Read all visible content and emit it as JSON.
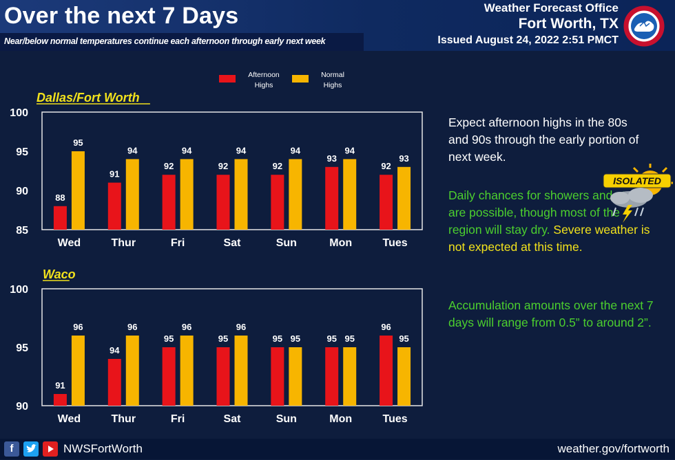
{
  "header": {
    "title": "Over the next 7 Days",
    "subtitle": "Near/below normal temperatures continue each afternoon through early next week",
    "office": "Weather Forecast Office",
    "city": "Fort Worth, TX",
    "issued": "Issued August 24, 2022 2:51 PMCT"
  },
  "legend": {
    "afternoon": "Afternoon Highs",
    "normal": "Normal Highs"
  },
  "colors": {
    "afternoon": "#e8141a",
    "normal": "#f7b500",
    "plot_border": "#e6e6e6",
    "location_label": "#f2e21c"
  },
  "chart_data": [
    {
      "type": "bar",
      "title": "Dallas/Fort Worth",
      "categories": [
        "Wed",
        "Thur",
        "Fri",
        "Sat",
        "Sun",
        "Mon",
        "Tues"
      ],
      "series": [
        {
          "name": "Afternoon Highs",
          "values": [
            88,
            91,
            92,
            92,
            92,
            93,
            92
          ]
        },
        {
          "name": "Normal Highs",
          "values": [
            95,
            94,
            94,
            94,
            94,
            94,
            93
          ]
        }
      ],
      "ylim": [
        85,
        100
      ],
      "yticks": [
        85,
        90,
        95,
        100
      ],
      "legend": "top-center",
      "grid": false
    },
    {
      "type": "bar",
      "title": "Waco",
      "categories": [
        "Wed",
        "Thur",
        "Fri",
        "Sat",
        "Sun",
        "Mon",
        "Tues"
      ],
      "series": [
        {
          "name": "Afternoon Highs",
          "values": [
            91,
            94,
            95,
            95,
            95,
            95,
            96
          ]
        },
        {
          "name": "Normal Highs",
          "values": [
            96,
            96,
            96,
            96,
            95,
            95,
            95
          ]
        }
      ],
      "ylim": [
        90,
        100
      ],
      "yticks": [
        90,
        95,
        100
      ],
      "grid": false
    }
  ],
  "text_panel": {
    "outlook": "Expect afternoon highs in the 80s and 90s through the early portion of next week.",
    "showers_green": "Daily chances for showers and storms are possible, though most of the region will stay dry.",
    "showers_yellow": "Severe weather is not expected at this time.",
    "accumulation": "Accumulation amounts over the next 7 days will range from 0.5” to around 2”.",
    "isolated_label": "ISOLATED",
    "isolated_icon": "thunderstorm-cloud-icon"
  },
  "footer": {
    "icons": [
      "facebook-icon",
      "twitter-icon",
      "youtube-icon"
    ],
    "handle": "NWSFortWorth",
    "website": "weather.gov/fortworth"
  }
}
